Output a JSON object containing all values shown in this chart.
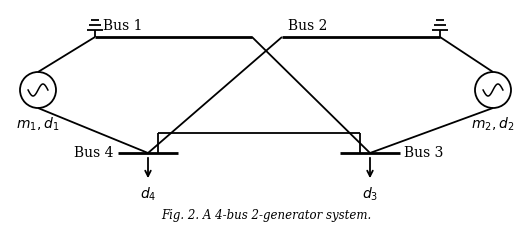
{
  "bg_color": "#ffffff",
  "line_color": "#000000",
  "fig_width": 5.32,
  "fig_height": 2.4,
  "dpi": 100,
  "bus1_label": "Bus 1",
  "bus2_label": "Bus 2",
  "bus3_label": "Bus 3",
  "bus4_label": "Bus 4",
  "gen1_label": "$m_1, d_1$",
  "gen2_label": "$m_2, d_2$",
  "load4_label": "$d_4$",
  "load3_label": "$d_3$",
  "caption": "Fig. 2. A 4-bus 2-generator system."
}
